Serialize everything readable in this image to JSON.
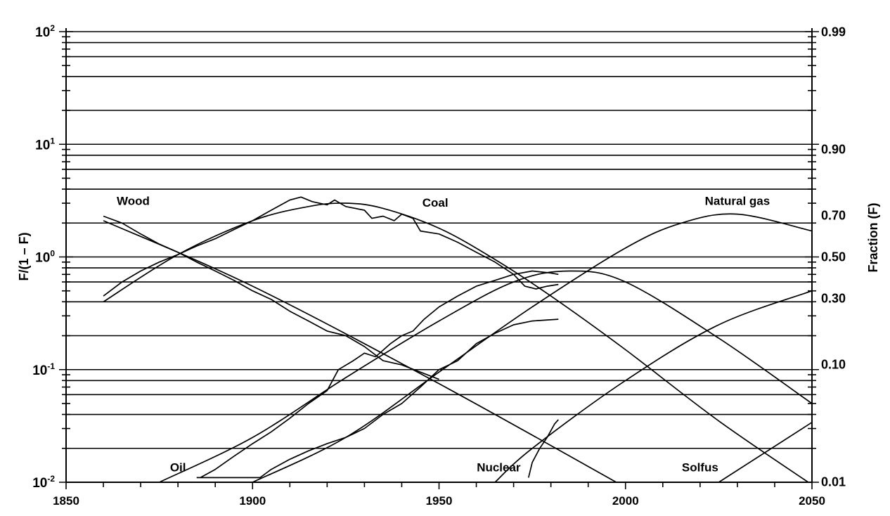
{
  "chart_data": {
    "type": "line",
    "title": "",
    "xlabel": "",
    "ylabel_left": "F/(1 – F)",
    "ylabel_right": "Fraction (F)",
    "xlim": [
      1850,
      2050
    ],
    "ylim": [
      0.01,
      100
    ],
    "y_scale": "log",
    "grid": true,
    "x_ticks": [
      {
        "value": 1850,
        "label": "1850"
      },
      {
        "value": 1900,
        "label": "1900"
      },
      {
        "value": 1950,
        "label": "1950"
      },
      {
        "value": 2000,
        "label": "2000"
      },
      {
        "value": 2050,
        "label": "2050"
      }
    ],
    "y_ticks_left": [
      {
        "value": 100,
        "base": "10",
        "exp": "2"
      },
      {
        "value": 10,
        "base": "10",
        "exp": "1"
      },
      {
        "value": 1,
        "base": "10",
        "exp": "0"
      },
      {
        "value": 0.1,
        "base": "10",
        "exp": "-1"
      },
      {
        "value": 0.01,
        "base": "10",
        "exp": "-2"
      }
    ],
    "y_ticks_right": [
      {
        "value": 0.99,
        "label": "0.99"
      },
      {
        "value": 0.9,
        "label": "0.90"
      },
      {
        "value": 0.7,
        "label": "0.70"
      },
      {
        "value": 0.5,
        "label": "0.50"
      },
      {
        "value": 0.3,
        "label": "0.30"
      },
      {
        "value": 0.1,
        "label": "0.10"
      },
      {
        "value": 0.01,
        "label": "0.01"
      }
    ],
    "series": [
      {
        "name": "Wood",
        "label_at": [
          1868,
          2.9
        ],
        "fitted": [
          [
            1860,
            2.1
          ],
          [
            1900,
            0.55
          ],
          [
            1950,
            0.075
          ],
          [
            2000,
            0.009
          ]
        ],
        "observed": [
          [
            1860,
            2.3
          ],
          [
            1865,
            2.0
          ],
          [
            1870,
            1.6
          ],
          [
            1875,
            1.3
          ],
          [
            1880,
            1.1
          ],
          [
            1885,
            0.9
          ],
          [
            1890,
            0.75
          ],
          [
            1895,
            0.62
          ],
          [
            1900,
            0.5
          ],
          [
            1905,
            0.42
          ],
          [
            1910,
            0.33
          ],
          [
            1915,
            0.27
          ],
          [
            1920,
            0.22
          ],
          [
            1925,
            0.2
          ],
          [
            1930,
            0.16
          ],
          [
            1935,
            0.12
          ],
          [
            1940,
            0.11
          ],
          [
            1945,
            0.095
          ],
          [
            1950,
            0.082
          ]
        ]
      },
      {
        "name": "Coal",
        "label_at": [
          1949,
          2.8
        ],
        "fitted": [
          [
            1860,
            0.4
          ],
          [
            1880,
            1.05
          ],
          [
            1900,
            2.1
          ],
          [
            1915,
            2.8
          ],
          [
            1925,
            3.0
          ],
          [
            1935,
            2.7
          ],
          [
            1950,
            1.8
          ],
          [
            1965,
            0.95
          ],
          [
            1980,
            0.45
          ],
          [
            2000,
            0.15
          ],
          [
            2025,
            0.035
          ],
          [
            2050,
            0.0095
          ]
        ],
        "observed": [
          [
            1860,
            0.45
          ],
          [
            1865,
            0.6
          ],
          [
            1870,
            0.75
          ],
          [
            1875,
            0.9
          ],
          [
            1880,
            1.05
          ],
          [
            1885,
            1.25
          ],
          [
            1890,
            1.45
          ],
          [
            1895,
            1.75
          ],
          [
            1900,
            2.1
          ],
          [
            1905,
            2.6
          ],
          [
            1910,
            3.2
          ],
          [
            1913,
            3.4
          ],
          [
            1916,
            3.1
          ],
          [
            1920,
            2.9
          ],
          [
            1922,
            3.2
          ],
          [
            1925,
            2.8
          ],
          [
            1930,
            2.6
          ],
          [
            1932,
            2.2
          ],
          [
            1935,
            2.3
          ],
          [
            1938,
            2.1
          ],
          [
            1940,
            2.4
          ],
          [
            1943,
            2.2
          ],
          [
            1945,
            1.7
          ],
          [
            1950,
            1.6
          ],
          [
            1955,
            1.35
          ],
          [
            1960,
            1.1
          ],
          [
            1965,
            0.9
          ],
          [
            1970,
            0.7
          ],
          [
            1973,
            0.55
          ],
          [
            1976,
            0.52
          ],
          [
            1979,
            0.55
          ],
          [
            1982,
            0.57
          ]
        ]
      },
      {
        "name": "Oil",
        "label_at": [
          1880,
          0.0125
        ],
        "fitted": [
          [
            1875,
            0.01
          ],
          [
            1900,
            0.025
          ],
          [
            1925,
            0.085
          ],
          [
            1950,
            0.27
          ],
          [
            1970,
            0.6
          ],
          [
            1985,
            0.75
          ],
          [
            2000,
            0.6
          ],
          [
            2025,
            0.19
          ],
          [
            2050,
            0.05
          ]
        ],
        "observed": [
          [
            1886,
            0.011
          ],
          [
            1890,
            0.013
          ],
          [
            1895,
            0.017
          ],
          [
            1900,
            0.022
          ],
          [
            1905,
            0.028
          ],
          [
            1910,
            0.037
          ],
          [
            1915,
            0.05
          ],
          [
            1920,
            0.065
          ],
          [
            1923,
            0.1
          ],
          [
            1927,
            0.12
          ],
          [
            1930,
            0.14
          ],
          [
            1933,
            0.13
          ],
          [
            1937,
            0.17
          ],
          [
            1940,
            0.2
          ],
          [
            1943,
            0.22
          ],
          [
            1946,
            0.28
          ],
          [
            1950,
            0.36
          ],
          [
            1955,
            0.45
          ],
          [
            1960,
            0.55
          ],
          [
            1965,
            0.62
          ],
          [
            1970,
            0.7
          ],
          [
            1975,
            0.75
          ],
          [
            1980,
            0.72
          ],
          [
            1982,
            0.7
          ]
        ]
      },
      {
        "name": "Natural gas",
        "label_at": [
          2030,
          2.9
        ],
        "fitted": [
          [
            1900,
            0.01
          ],
          [
            1925,
            0.025
          ],
          [
            1950,
            0.095
          ],
          [
            1975,
            0.36
          ],
          [
            2000,
            1.2
          ],
          [
            2015,
            2.0
          ],
          [
            2030,
            2.4
          ],
          [
            2050,
            1.7
          ]
        ],
        "observed": [
          [
            1885,
            0.011
          ],
          [
            1890,
            0.011
          ],
          [
            1900,
            0.011
          ],
          [
            1902,
            0.011
          ],
          [
            1905,
            0.013
          ],
          [
            1910,
            0.016
          ],
          [
            1915,
            0.019
          ],
          [
            1920,
            0.022
          ],
          [
            1925,
            0.025
          ],
          [
            1930,
            0.03
          ],
          [
            1935,
            0.04
          ],
          [
            1940,
            0.05
          ],
          [
            1945,
            0.07
          ],
          [
            1950,
            0.1
          ],
          [
            1955,
            0.12
          ],
          [
            1960,
            0.17
          ],
          [
            1965,
            0.21
          ],
          [
            1970,
            0.25
          ],
          [
            1975,
            0.27
          ],
          [
            1982,
            0.28
          ]
        ]
      },
      {
        "name": "Nuclear",
        "label_at": [
          1966,
          0.0125
        ],
        "fitted": [
          [
            1965,
            0.01
          ],
          [
            1975,
            0.02
          ],
          [
            2000,
            0.08
          ],
          [
            2025,
            0.25
          ],
          [
            2050,
            0.5
          ]
        ],
        "observed": [
          [
            1974,
            0.011
          ],
          [
            1975,
            0.015
          ],
          [
            1977,
            0.02
          ],
          [
            1979,
            0.025
          ],
          [
            1981,
            0.033
          ],
          [
            1982,
            0.036
          ]
        ]
      },
      {
        "name": "Solfus",
        "label_at": [
          2020,
          0.0125
        ],
        "fitted": [
          [
            2025,
            0.01
          ],
          [
            2050,
            0.034
          ]
        ],
        "observed": []
      }
    ]
  }
}
